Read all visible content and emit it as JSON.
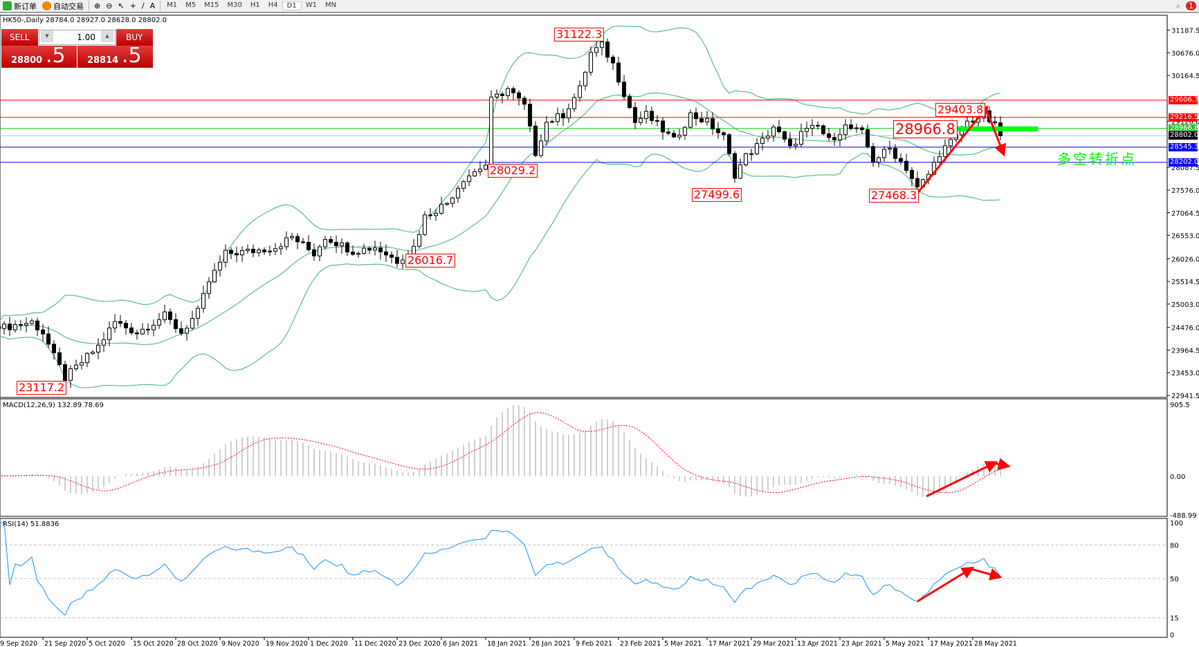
{
  "toolbar": {
    "new_order": "新订单",
    "auto_trading": "自动交易",
    "timeframes": [
      "M1",
      "M5",
      "M15",
      "M30",
      "H1",
      "H4",
      "D1",
      "W1",
      "MN"
    ],
    "active_timeframe": "D1",
    "notification_count": "1"
  },
  "chart_info": "HK50-,Daily  28784.0 28927.0 28628.0 28802.0",
  "trade_panel": {
    "sell_label": "SELL",
    "buy_label": "BUY",
    "lot": "1.00",
    "sell_price_main": "28800",
    "sell_price_frac": ".5",
    "buy_price_main": "28814",
    "buy_price_frac": ".5",
    "color": "#cc1111"
  },
  "price_axis": [
    "31187.5",
    "30676.0",
    "30164.5",
    "29126.0",
    "28087.5",
    "27576.0",
    "27064.5",
    "26553.0",
    "26026.0",
    "25514.5",
    "25003.0",
    "24476.0",
    "23964.5",
    "23453.0",
    "22941.5"
  ],
  "price_lines": [
    {
      "value": "29606.7",
      "color": "#ff0000"
    },
    {
      "value": "29216.5",
      "color": "#ff0000"
    },
    {
      "value": "28966.8",
      "color": "#00cc00"
    },
    {
      "value": "28802.0",
      "color": "#000000"
    },
    {
      "value": "28545.3",
      "color": "#0000ff"
    },
    {
      "value": "28202.0",
      "color": "#0000ff"
    }
  ],
  "annotations": {
    "high_31122": "31122.3",
    "low_28029": "28029.2",
    "low_27499": "27499.6",
    "low_27468": "27468.3",
    "low_26016": "26016.7",
    "low_23117": "23117.2",
    "high_29403": "29403.8",
    "pivot": "28966.8",
    "pivot_text": "多空转折点"
  },
  "macd": {
    "label": "MACD(12,26,9) 132.89 78.69",
    "axis": [
      "905.5",
      "0.00",
      "-488.99"
    ]
  },
  "rsi": {
    "label": "RSI(14) 51.8836",
    "axis": [
      "100",
      "80",
      "50",
      "15",
      "0"
    ],
    "color": "#1e90ff"
  },
  "dates": [
    "9 Sep 2020",
    "21 Sep 2020",
    "5 Oct 2020",
    "15 Oct 2020",
    "28 Oct 2020",
    "9 Nov 2020",
    "19 Nov 2020",
    "1 Dec 2020",
    "11 Dec 2020",
    "23 Dec 2020",
    "6 Jan 2021",
    "18 Jan 2021",
    "28 Jan 2021",
    "9 Feb 2021",
    "23 Feb 2021",
    "5 Mar 2021",
    "17 Mar 2021",
    "29 Mar 2021",
    "13 Apr 2021",
    "23 Apr 2021",
    "5 May 2021",
    "17 May 2021",
    "28 May 2021"
  ],
  "chart_data": {
    "type": "candlestick",
    "symbol": "HK50",
    "timeframe": "Daily",
    "ylim": [
      22941.5,
      31187.5
    ],
    "close_path": [
      [
        0,
        24450
      ],
      [
        3,
        24530
      ],
      [
        6,
        24600
      ],
      [
        8,
        24360
      ],
      [
        10,
        23820
      ],
      [
        12,
        23340
      ],
      [
        14,
        23570
      ],
      [
        18,
        24050
      ],
      [
        21,
        24600
      ],
      [
        25,
        24360
      ],
      [
        30,
        24740
      ],
      [
        33,
        24360
      ],
      [
        36,
        24820
      ],
      [
        38,
        25510
      ],
      [
        41,
        26140
      ],
      [
        46,
        26200
      ],
      [
        50,
        26290
      ],
      [
        53,
        26520
      ],
      [
        57,
        26140
      ],
      [
        59,
        26520
      ],
      [
        64,
        26200
      ],
      [
        68,
        26290
      ],
      [
        72,
        25980
      ],
      [
        75,
        26290
      ],
      [
        77,
        26980
      ],
      [
        81,
        27290
      ],
      [
        84,
        27840
      ],
      [
        88,
        28150
      ],
      [
        89,
        29600
      ],
      [
        92,
        29860
      ],
      [
        95,
        29470
      ],
      [
        97,
        28420
      ],
      [
        99,
        29110
      ],
      [
        102,
        29280
      ],
      [
        105,
        29860
      ],
      [
        107,
        30670
      ],
      [
        109,
        30840
      ],
      [
        111,
        30420
      ],
      [
        113,
        29770
      ],
      [
        115,
        29110
      ],
      [
        117,
        29280
      ],
      [
        120,
        28930
      ],
      [
        122,
        28690
      ],
      [
        125,
        29280
      ],
      [
        128,
        29110
      ],
      [
        131,
        28770
      ],
      [
        133,
        27930
      ],
      [
        135,
        28340
      ],
      [
        138,
        28690
      ],
      [
        140,
        29010
      ],
      [
        143,
        28510
      ],
      [
        145,
        28860
      ],
      [
        148,
        29010
      ],
      [
        150,
        28690
      ],
      [
        153,
        29010
      ],
      [
        156,
        28860
      ],
      [
        158,
        28250
      ],
      [
        161,
        28510
      ],
      [
        164,
        28080
      ],
      [
        166,
        27610
      ],
      [
        168,
        27930
      ],
      [
        170,
        28420
      ],
      [
        173,
        28770
      ],
      [
        175,
        29110
      ],
      [
        178,
        29280
      ],
      [
        180,
        29010
      ],
      [
        181,
        28802
      ]
    ]
  }
}
